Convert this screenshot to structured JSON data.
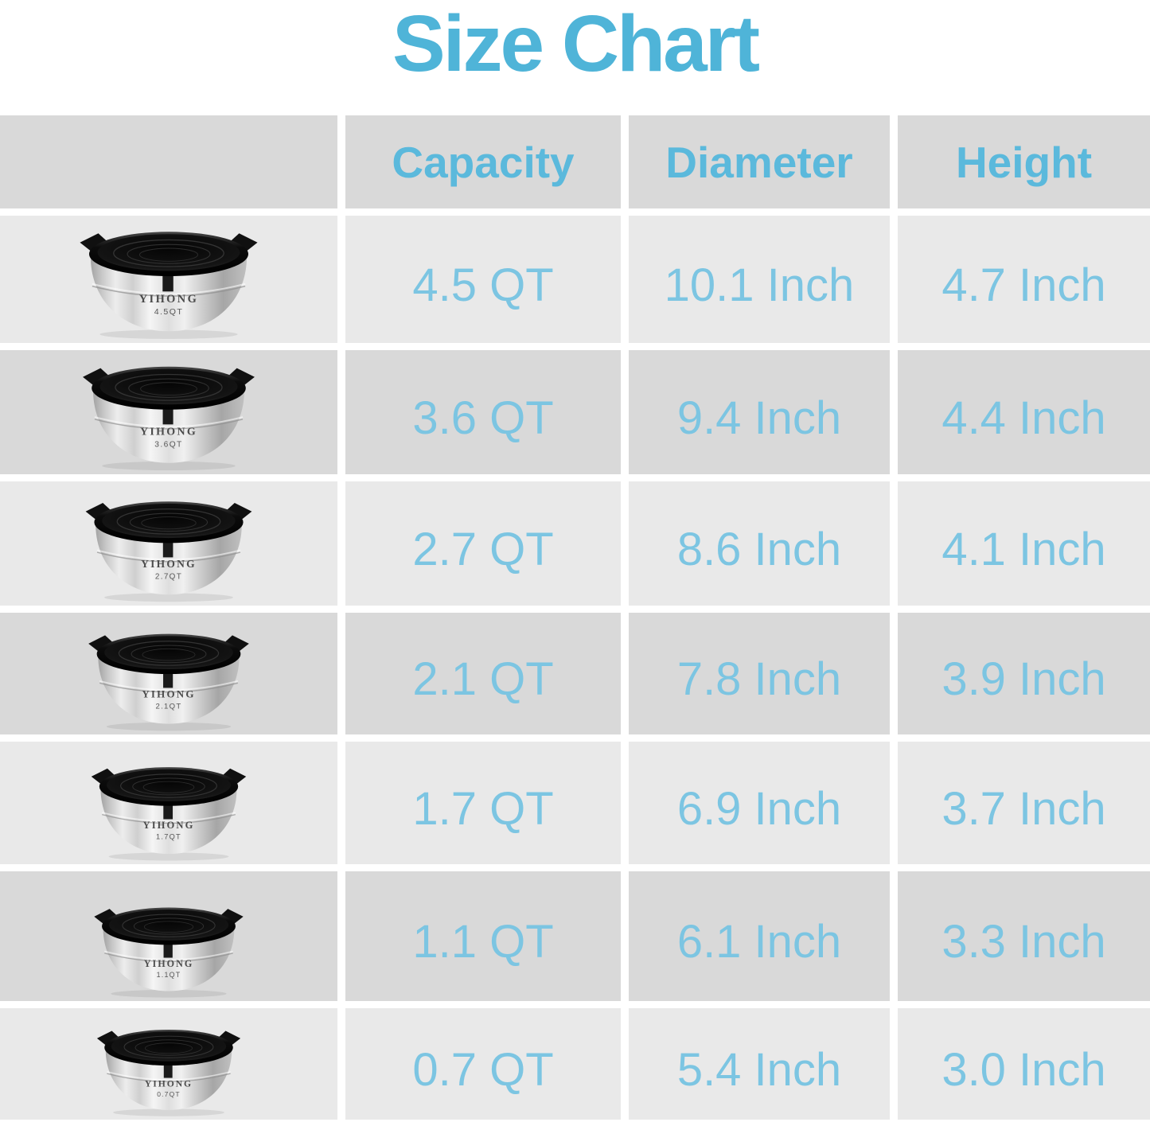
{
  "title": "Size Chart",
  "brand": "YIHONG",
  "colors": {
    "title_blue": "#4fb4d8",
    "header_blue": "#5bb9dc",
    "value_blue": "#7cc5e2",
    "cell_dark": "#d9d9d9",
    "cell_light": "#e9e9e9"
  },
  "table": {
    "headers": {
      "capacity": "Capacity",
      "diameter": "Diameter",
      "height": "Height"
    },
    "rows": [
      {
        "brand": "YIHONG",
        "bowl_label": "4.5QT",
        "capacity": "4.5 QT",
        "diameter": "10.1 Inch",
        "height": "4.7 Inch"
      },
      {
        "brand": "YIHONG",
        "bowl_label": "3.6QT",
        "capacity": "3.6 QT",
        "diameter": "9.4 Inch",
        "height": "4.4 Inch"
      },
      {
        "brand": "YIHONG",
        "bowl_label": "2.7QT",
        "capacity": "2.7 QT",
        "diameter": "8.6 Inch",
        "height": "4.1 Inch"
      },
      {
        "brand": "YIHONG",
        "bowl_label": "2.1QT",
        "capacity": "2.1 QT",
        "diameter": "7.8 Inch",
        "height": "3.9 Inch"
      },
      {
        "brand": "YIHONG",
        "bowl_label": "1.7QT",
        "capacity": "1.7 QT",
        "diameter": "6.9 Inch",
        "height": "3.7 Inch"
      },
      {
        "brand": "YIHONG",
        "bowl_label": "1.1QT",
        "capacity": "1.1 QT",
        "diameter": "6.1 Inch",
        "height": "3.3 Inch"
      },
      {
        "brand": "YIHONG",
        "bowl_label": "0.7QT",
        "capacity": "0.7 QT",
        "diameter": "5.4 Inch",
        "height": "3.0 Inch"
      }
    ]
  },
  "chart_data": {
    "type": "table",
    "title": "Size Chart",
    "columns": [
      "Capacity",
      "Diameter",
      "Height"
    ],
    "rows": [
      [
        "4.5 QT",
        "10.1 Inch",
        "4.7 Inch"
      ],
      [
        "3.6 QT",
        "9.4 Inch",
        "4.4 Inch"
      ],
      [
        "2.7 QT",
        "8.6 Inch",
        "4.1 Inch"
      ],
      [
        "2.1 QT",
        "7.8 Inch",
        "3.9 Inch"
      ],
      [
        "1.7 QT",
        "6.9 Inch",
        "3.7 Inch"
      ],
      [
        "1.1 QT",
        "6.1 Inch",
        "3.3 Inch"
      ],
      [
        "0.7 QT",
        "5.4 Inch",
        "3.0 Inch"
      ]
    ]
  }
}
